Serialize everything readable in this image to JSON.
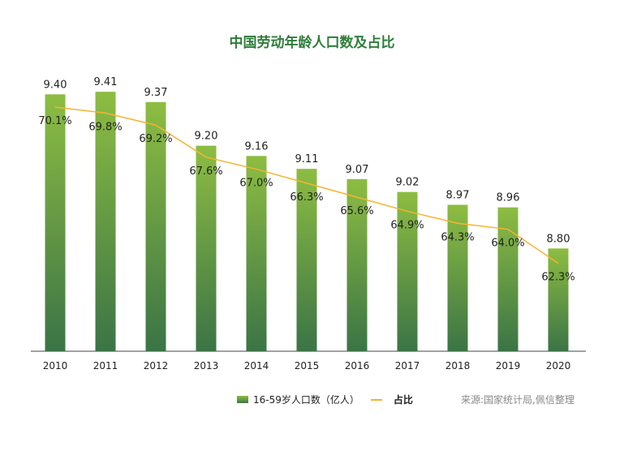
{
  "title": "中国劳动年龄人口数及占比",
  "source": "来源:国家统计局,佩信整理",
  "chart_data": {
    "type": "bar+line",
    "title": "中国劳动年龄人口数及占比",
    "categories": [
      "2010",
      "2011",
      "2012",
      "2013",
      "2014",
      "2015",
      "2016",
      "2017",
      "2018",
      "2019",
      "2020"
    ],
    "series": [
      {
        "name": "16-59岁人口数（亿人）",
        "type": "bar",
        "values": [
          9.4,
          9.41,
          9.37,
          9.2,
          9.16,
          9.11,
          9.07,
          9.02,
          8.97,
          8.96,
          8.8
        ],
        "labels": [
          "9.40",
          "9.41",
          "9.37",
          "9.20",
          "9.16",
          "9.11",
          "9.07",
          "9.02",
          "8.97",
          "8.96",
          "8.80"
        ],
        "color": "#8bbb43"
      },
      {
        "name": "占比",
        "type": "line",
        "values": [
          70.1,
          69.8,
          69.2,
          67.6,
          67.0,
          66.3,
          65.6,
          64.9,
          64.3,
          64.0,
          62.3
        ],
        "labels": [
          "70.1%",
          "69.8%",
          "69.2%",
          "67.6%",
          "67.0%",
          "66.3%",
          "65.6%",
          "64.9%",
          "64.3%",
          "64.0%",
          "62.3%"
        ],
        "color": "#f5b431"
      }
    ],
    "legend": "bottom",
    "grid": false
  }
}
